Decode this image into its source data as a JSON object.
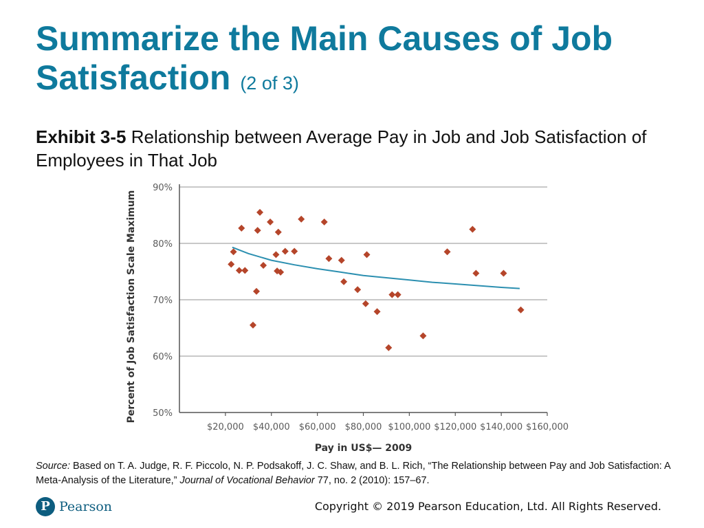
{
  "slide": {
    "title": "Summarize the Main Causes of Job Satisfaction",
    "title_suffix": "(2 of 3)",
    "exhibit_lead": "Exhibit 3-5",
    "exhibit_text": "Relationship between Average Pay in Job and Job Satisfaction of Employees in That Job"
  },
  "source": {
    "label": "Source:",
    "text_a": "Based on T. A. Judge, R. F. Piccolo, N. P. Podsakoff, J. C. Shaw, and B. L. Rich, “The Relationship between Pay and Job Satisfaction: A Meta-Analysis of the Literature,”",
    "journal": "Journal of Vocational Behavior",
    "text_b": "77, no. 2 (2010): 157–67."
  },
  "footer": {
    "logo_text": "Pearson",
    "copyright": "Copyright © 2019 Pearson Education, Ltd. All Rights Reserved."
  },
  "colors": {
    "title": "#0f7a9d",
    "marker": "#b5452a",
    "trend": "#2b8fb0",
    "grid": "#a6a6a6",
    "axis_text": "#5a5a5a"
  },
  "chart_data": {
    "type": "scatter",
    "xlabel": "Pay in US$— 2009",
    "ylabel": "Percent of Job Satisfaction Scale Maximum",
    "xlim": [
      0,
      160000
    ],
    "ylim": [
      50,
      90
    ],
    "x_ticks": [
      "$20,000",
      "$40,000",
      "$60,000",
      "$80,000",
      "$100,000",
      "$120,000",
      "$140,000",
      "$160,000"
    ],
    "y_ticks": [
      "50%",
      "60%",
      "70%",
      "80%",
      "90%"
    ],
    "grid": "horizontal",
    "points": [
      {
        "x": 22500,
        "y": 76.3
      },
      {
        "x": 23500,
        "y": 78.5
      },
      {
        "x": 26000,
        "y": 75.2
      },
      {
        "x": 27000,
        "y": 82.7
      },
      {
        "x": 28500,
        "y": 75.2
      },
      {
        "x": 32000,
        "y": 65.5
      },
      {
        "x": 33500,
        "y": 71.5
      },
      {
        "x": 34000,
        "y": 82.3
      },
      {
        "x": 35000,
        "y": 85.5
      },
      {
        "x": 36500,
        "y": 76.1
      },
      {
        "x": 39500,
        "y": 83.8
      },
      {
        "x": 42000,
        "y": 78.0
      },
      {
        "x": 42500,
        "y": 75.1
      },
      {
        "x": 43000,
        "y": 82.0
      },
      {
        "x": 44000,
        "y": 74.9
      },
      {
        "x": 46000,
        "y": 78.6
      },
      {
        "x": 50000,
        "y": 78.6
      },
      {
        "x": 53000,
        "y": 84.3
      },
      {
        "x": 63000,
        "y": 83.8
      },
      {
        "x": 65000,
        "y": 77.3
      },
      {
        "x": 70500,
        "y": 77.0
      },
      {
        "x": 71500,
        "y": 73.2
      },
      {
        "x": 77500,
        "y": 71.8
      },
      {
        "x": 81000,
        "y": 69.3
      },
      {
        "x": 81500,
        "y": 78.0
      },
      {
        "x": 86000,
        "y": 67.9
      },
      {
        "x": 91000,
        "y": 61.5
      },
      {
        "x": 92500,
        "y": 70.9
      },
      {
        "x": 95000,
        "y": 70.9
      },
      {
        "x": 106000,
        "y": 63.6
      },
      {
        "x": 116500,
        "y": 78.5
      },
      {
        "x": 127500,
        "y": 82.5
      },
      {
        "x": 129000,
        "y": 74.7
      },
      {
        "x": 141000,
        "y": 74.7
      },
      {
        "x": 148500,
        "y": 68.2
      }
    ],
    "trend_line": [
      {
        "x": 23000,
        "y": 79.3
      },
      {
        "x": 30000,
        "y": 78.2
      },
      {
        "x": 40000,
        "y": 77.0
      },
      {
        "x": 50000,
        "y": 76.2
      },
      {
        "x": 60000,
        "y": 75.5
      },
      {
        "x": 70000,
        "y": 74.9
      },
      {
        "x": 80000,
        "y": 74.3
      },
      {
        "x": 90000,
        "y": 73.9
      },
      {
        "x": 100000,
        "y": 73.5
      },
      {
        "x": 110000,
        "y": 73.1
      },
      {
        "x": 120000,
        "y": 72.8
      },
      {
        "x": 130000,
        "y": 72.5
      },
      {
        "x": 140000,
        "y": 72.2
      },
      {
        "x": 148000,
        "y": 72.0
      }
    ]
  }
}
